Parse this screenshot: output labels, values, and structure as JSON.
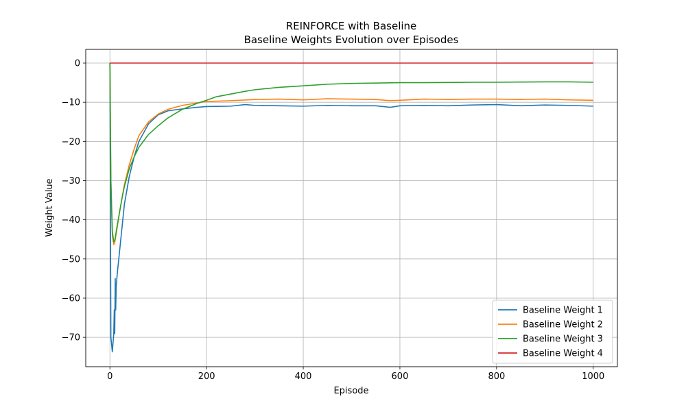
{
  "chart_data": {
    "type": "line",
    "title": "REINFORCE with Baseline",
    "subtitle": "Baseline Weights Evolution over Episodes",
    "xlabel": "Episode",
    "ylabel": "Weight Value",
    "xlim": [
      -50,
      1050
    ],
    "ylim": [
      -77.5,
      3.5
    ],
    "x_ticks": [
      0,
      200,
      400,
      600,
      800,
      1000
    ],
    "y_ticks": [
      0,
      -10,
      -20,
      -30,
      -40,
      -50,
      -60,
      -70
    ],
    "grid": true,
    "legend_position": "lower-right",
    "series": [
      {
        "name": "Baseline Weight 1",
        "color": "#1f77b4",
        "x": [
          0,
          2,
          5,
          8,
          9,
          10,
          11,
          12,
          13,
          15,
          20,
          25,
          30,
          40,
          50,
          60,
          80,
          100,
          120,
          150,
          180,
          200,
          250,
          280,
          300,
          350,
          400,
          450,
          500,
          550,
          580,
          600,
          650,
          700,
          750,
          800,
          850,
          900,
          950,
          1000
        ],
        "y": [
          0,
          -70,
          -73.7,
          -69,
          -63,
          -69,
          -55,
          -63,
          -57,
          -54,
          -48,
          -42,
          -36,
          -29,
          -24,
          -20,
          -15.5,
          -13.2,
          -12.2,
          -11.7,
          -11.3,
          -11.1,
          -11.0,
          -10.6,
          -10.8,
          -10.9,
          -11.0,
          -10.8,
          -10.9,
          -10.9,
          -11.3,
          -10.9,
          -10.8,
          -10.9,
          -10.7,
          -10.6,
          -10.9,
          -10.7,
          -10.8,
          -11.0
        ]
      },
      {
        "name": "Baseline Weight 2",
        "color": "#ff7f0e",
        "x": [
          0,
          2,
          5,
          8,
          10,
          15,
          20,
          25,
          30,
          40,
          50,
          60,
          80,
          100,
          120,
          150,
          180,
          200,
          250,
          300,
          350,
          400,
          450,
          500,
          550,
          580,
          600,
          650,
          700,
          750,
          800,
          850,
          900,
          950,
          1000
        ],
        "y": [
          0,
          -30,
          -44,
          -46.3,
          -45.8,
          -42,
          -38,
          -34.5,
          -31,
          -26,
          -22,
          -18.5,
          -15.0,
          -13.0,
          -11.8,
          -10.8,
          -10.2,
          -9.8,
          -9.6,
          -9.3,
          -9.2,
          -9.4,
          -9.1,
          -9.2,
          -9.3,
          -9.6,
          -9.5,
          -9.2,
          -9.3,
          -9.2,
          -9.2,
          -9.3,
          -9.2,
          -9.4,
          -9.5
        ]
      },
      {
        "name": "Baseline Weight 3",
        "color": "#2ca02c",
        "x": [
          0,
          2,
          5,
          8,
          10,
          15,
          20,
          25,
          30,
          40,
          50,
          60,
          80,
          100,
          120,
          150,
          180,
          200,
          220,
          250,
          280,
          300,
          350,
          400,
          450,
          500,
          550,
          600,
          650,
          700,
          750,
          800,
          850,
          900,
          950,
          1000
        ],
        "y": [
          0,
          -30,
          -43,
          -45.6,
          -45.3,
          -41.5,
          -38,
          -34.5,
          -31.5,
          -27,
          -24,
          -21.5,
          -18.2,
          -16.0,
          -14.0,
          -11.8,
          -10.3,
          -9.5,
          -8.6,
          -7.9,
          -7.2,
          -6.8,
          -6.2,
          -5.8,
          -5.4,
          -5.2,
          -5.1,
          -5.0,
          -5.0,
          -4.95,
          -4.9,
          -4.9,
          -4.85,
          -4.8,
          -4.8,
          -4.9
        ]
      },
      {
        "name": "Baseline Weight 4",
        "color": "#d62728",
        "x": [
          0,
          1000
        ],
        "y": [
          0,
          0
        ]
      }
    ]
  }
}
